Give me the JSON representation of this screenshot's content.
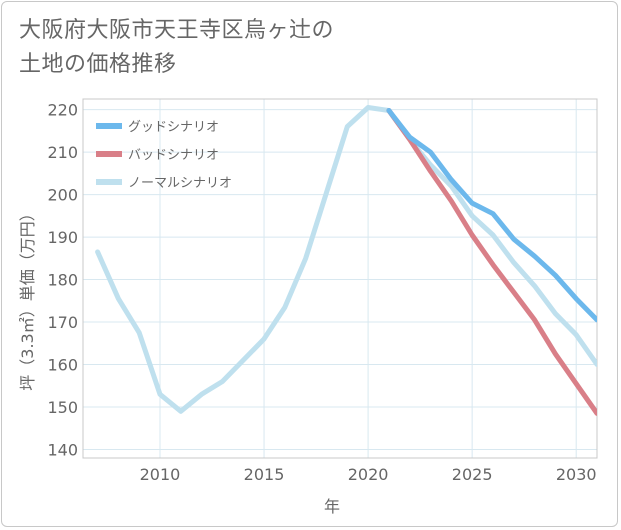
{
  "title_lines": [
    "大阪府大阪市天王寺区烏ヶ辻の",
    "土地の価格推移"
  ],
  "chart_data": {
    "type": "line",
    "title": "大阪府大阪市天王寺区烏ヶ辻の土地の価格推移",
    "xlabel": "年",
    "ylabel": "坪（3.3㎡）単価（万円）",
    "xlim": [
      2006.3,
      2031
    ],
    "ylim": [
      138,
      222.5
    ],
    "xticks": [
      2010,
      2015,
      2020,
      2025,
      2030
    ],
    "yticks": [
      140,
      150,
      160,
      170,
      180,
      190,
      200,
      210,
      220
    ],
    "grid": true,
    "legend_position": "top-left",
    "series": [
      {
        "name": "グッドシナリオ",
        "color": "#6cb8ec",
        "x": [
          2021,
          2022,
          2023,
          2024,
          2025,
          2026,
          2027,
          2028,
          2029,
          2030,
          2031
        ],
        "values": [
          219.8,
          213.5,
          210,
          203.5,
          198,
          195.5,
          189.5,
          185.5,
          181,
          175.5,
          170.5
        ]
      },
      {
        "name": "バッドシナリオ",
        "color": "#d97f88",
        "x": [
          2021,
          2022,
          2023,
          2024,
          2025,
          2026,
          2027,
          2028,
          2029,
          2030,
          2031
        ],
        "values": [
          219.8,
          213,
          205.5,
          198.5,
          190.5,
          183.5,
          177,
          170.5,
          162.5,
          155.5,
          148.5
        ]
      },
      {
        "name": "ノーマルシナリオ",
        "color": "#bfe0ee",
        "x": [
          2007,
          2008,
          2009,
          2010,
          2011,
          2012,
          2013,
          2014,
          2015,
          2016,
          2017,
          2018,
          2019,
          2020,
          2021,
          2022,
          2023,
          2024,
          2025,
          2026,
          2027,
          2028,
          2029,
          2030,
          2031
        ],
        "values": [
          186.5,
          175.5,
          167.5,
          153,
          149,
          153,
          156,
          161,
          166,
          173.5,
          185,
          200.5,
          216,
          220.5,
          219.8,
          213,
          207,
          202,
          195,
          190.5,
          184,
          178.5,
          172,
          167,
          160
        ]
      }
    ]
  }
}
